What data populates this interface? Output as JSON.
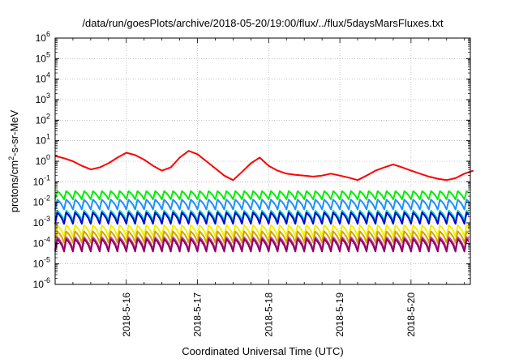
{
  "chart_data": {
    "type": "line",
    "title": "/data/run/goesPlots/archive/2018-05-20/19:00/flux/../flux/5daysMarsFluxes.txt",
    "xlabel": "Coordinated Universal Time (UTC)",
    "ylabel_parts": {
      "pre": "protons/cm",
      "sup": "2",
      "post": "-s-sr-MeV"
    },
    "yscale": "log",
    "ylim": [
      1e-06,
      1000000.0
    ],
    "xlim": [
      "2018-05-15 00:00",
      "2018-05-20 20:00"
    ],
    "grid": true,
    "ytick_labels": [
      {
        "base": "10",
        "exp": "-6"
      },
      {
        "base": "10",
        "exp": "-5"
      },
      {
        "base": "10",
        "exp": "-4"
      },
      {
        "base": "10",
        "exp": "-3"
      },
      {
        "base": "10",
        "exp": "-2"
      },
      {
        "base": "10",
        "exp": "-1"
      },
      {
        "base": "10",
        "exp": "0"
      },
      {
        "base": "10",
        "exp": "1"
      },
      {
        "base": "10",
        "exp": "2"
      },
      {
        "base": "10",
        "exp": "3"
      },
      {
        "base": "10",
        "exp": "4"
      },
      {
        "base": "10",
        "exp": "5"
      },
      {
        "base": "10",
        "exp": "6"
      }
    ],
    "xtick_labels": [
      "2018-5-16",
      "2018-5-17",
      "2018-5-18",
      "2018-5-19",
      "2018-5-20"
    ],
    "x_hours": [
      0,
      3,
      6,
      9,
      12,
      15,
      18,
      21,
      24,
      27,
      30,
      33,
      36,
      39,
      42,
      45,
      48,
      51,
      54,
      57,
      60,
      63,
      66,
      69,
      72,
      75,
      78,
      81,
      84,
      87,
      90,
      93,
      96,
      99,
      102,
      105,
      108,
      111,
      114,
      117,
      120,
      123,
      126,
      129,
      132,
      135,
      138,
      141
    ],
    "series": [
      {
        "color": "#ff0000",
        "values": [
          1.8,
          1.4,
          1.0,
          0.6,
          0.4,
          0.5,
          0.8,
          1.5,
          2.6,
          2.0,
          1.2,
          0.6,
          0.35,
          0.5,
          1.5,
          3.2,
          2.2,
          1.0,
          0.45,
          0.2,
          0.12,
          0.3,
          0.8,
          1.5,
          0.6,
          0.35,
          0.25,
          0.22,
          0.2,
          0.18,
          0.2,
          0.25,
          0.2,
          0.16,
          0.12,
          0.2,
          0.35,
          0.5,
          0.7,
          0.5,
          0.35,
          0.25,
          0.18,
          0.14,
          0.12,
          0.15,
          0.25,
          0.35
        ]
      },
      {
        "color": "#00ee00",
        "base": 0.014,
        "amp": 2.5
      },
      {
        "color": "#1e90ff",
        "base": 0.0045,
        "amp": 3.0
      },
      {
        "color": "#00d0c0",
        "base": 0.0013,
        "amp": 3.0
      },
      {
        "color": "#0000cd",
        "base": 0.0009,
        "amp": 3.5
      },
      {
        "color": "#f0f000",
        "base": 0.00022,
        "amp": 3.5
      },
      {
        "color": "#d8a000",
        "base": 0.00011,
        "amp": 3.5
      },
      {
        "color": "#c040a0",
        "base": 5e-05,
        "amp": 4.0
      },
      {
        "color": "#900060",
        "base": 4e-05,
        "amp": 4.0
      }
    ]
  }
}
